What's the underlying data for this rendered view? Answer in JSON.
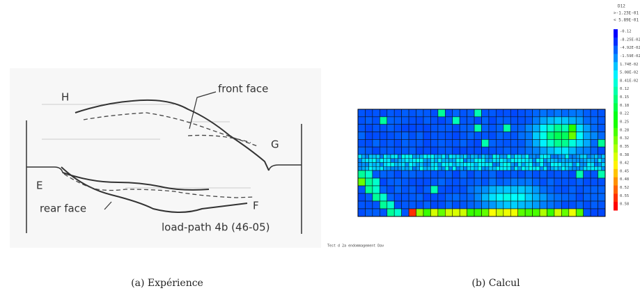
{
  "figure": {
    "left": {
      "labels": {
        "h": "H",
        "front": "front face",
        "g": "G",
        "e": "E",
        "rear": "rear face",
        "f": "F",
        "load_path": "load-path 4b (46-05)"
      },
      "caption": "(a) Expérience"
    },
    "right": {
      "variable": "D12",
      "max": ">-1.23E-01",
      "min": "< 5.89E-01",
      "levels": [
        "-0.12",
        "-8.25E-02",
        "-4.92E-02",
        "-1.59E-02",
        "1.74E-02",
        "5.08E-02",
        "8.41E-02",
        "0.12",
        "0.15",
        "0.18",
        "0.22",
        "0.25",
        "0.28",
        "0.32",
        "0.35",
        "0.38",
        "0.42",
        "0.45",
        "0.48",
        "0.52",
        "0.55",
        "0.58"
      ],
      "footer": "Test d 2a endommagement Dav",
      "caption": "(b) Calcul"
    }
  }
}
